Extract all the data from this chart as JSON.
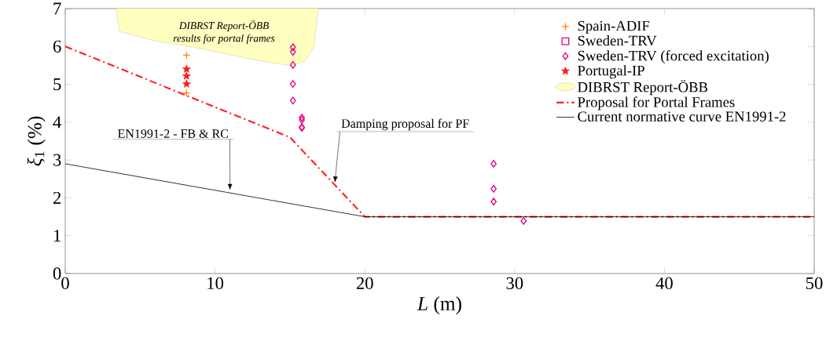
{
  "chart_data": {
    "type": "scatter",
    "xlabel": "*L* (m)",
    "ylabel": "*ξ*$_{1}$ (%)",
    "xlim": [
      0,
      50
    ],
    "ylim": [
      0,
      7
    ],
    "xticks": [
      0,
      10,
      20,
      30,
      40,
      50
    ],
    "yticks": [
      0,
      1,
      2,
      3,
      4,
      5,
      6,
      7
    ],
    "grid": false,
    "legend": "top right",
    "series": [
      {
        "name": "Spain-ADIF",
        "marker": "cross",
        "color": "#ff8000",
        "x": [
          8.1,
          8.1
        ],
        "values": [
          5.77,
          4.77
        ]
      },
      {
        "name": "Sweden-TRV",
        "marker": "square",
        "color": "#e6007e"
      },
      {
        "name": "Sweden-TRV (forced excitation)",
        "marker": "diamond",
        "color": "#e6007e",
        "x": [
          15.2,
          15.2,
          15.2,
          15.2,
          15.2,
          15.8,
          15.8,
          15.8,
          15.8,
          28.6,
          28.6,
          28.6,
          30.6
        ],
        "values": [
          5.98,
          5.86,
          5.51,
          5.01,
          4.57,
          4.12,
          4.06,
          3.87,
          3.85,
          2.9,
          2.24,
          1.9,
          1.39
        ]
      },
      {
        "name": "Portugal-IP",
        "marker": "star",
        "color": "#ff2020",
        "x": [
          8.1,
          8.1,
          8.1
        ],
        "values": [
          5.4,
          5.22,
          5.01
        ]
      },
      {
        "name": "DIBRST Report-ÖBB",
        "type": "area",
        "color": "#ffffc0",
        "x": [
          3.4,
          3.6,
          6.0,
          9.0,
          13.0,
          15.0,
          16.0,
          16.6,
          16.9
        ],
        "values": [
          7,
          6.4,
          6.15,
          5.95,
          5.62,
          5.5,
          5.6,
          6.0,
          7
        ]
      },
      {
        "name": "Proposal for Portal Frames",
        "type": "line",
        "line_style": "dashdot",
        "color": "#ff2020",
        "x": [
          0,
          15,
          20,
          50
        ],
        "values": [
          6,
          3.6,
          1.5,
          1.5
        ]
      },
      {
        "name": "Current normative curve EN1991-2",
        "type": "line",
        "line_style": "solid",
        "color": "#000000",
        "x": [
          0,
          20,
          50
        ],
        "values": [
          2.9,
          1.5,
          1.5
        ]
      }
    ],
    "annotations": [
      "DIBRST Report-ÖBB",
      "results for portal frames",
      {
        "text": "EN1991-2 - FB & RC",
        "x": 11,
        "y": 2.2
      },
      {
        "text": "Damping proposal for PF",
        "x": 18,
        "y": 2.4
      }
    ]
  }
}
